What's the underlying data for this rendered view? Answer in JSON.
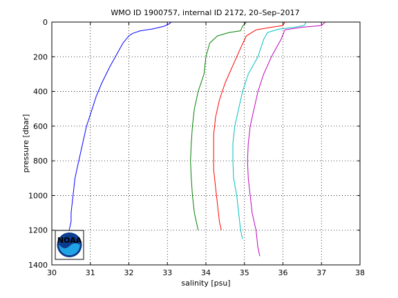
{
  "chart_data": {
    "type": "line",
    "title": "WMO ID 1900757, internal ID 2172, 20–Sep–2017",
    "xlabel": "salinity [psu]",
    "ylabel": "pressure [dbar]",
    "xlim": [
      30,
      38
    ],
    "ylim": [
      0,
      1400
    ],
    "y_reversed": true,
    "grid": true,
    "x_ticks": [
      "30",
      "31",
      "32",
      "33",
      "34",
      "35",
      "36",
      "37",
      "38"
    ],
    "y_ticks": [
      "0",
      "200",
      "400",
      "600",
      "800",
      "1000",
      "1200",
      "1400"
    ],
    "series": [
      {
        "color": "#0000ff",
        "points": [
          [
            33.1,
            0
          ],
          [
            33.05,
            10
          ],
          [
            32.9,
            25
          ],
          [
            32.6,
            40
          ],
          [
            32.3,
            50
          ],
          [
            32.1,
            65
          ],
          [
            32.0,
            80
          ],
          [
            31.85,
            120
          ],
          [
            31.7,
            180
          ],
          [
            31.5,
            260
          ],
          [
            31.3,
            350
          ],
          [
            31.15,
            430
          ],
          [
            31.05,
            500
          ],
          [
            30.9,
            600
          ],
          [
            30.8,
            700
          ],
          [
            30.7,
            800
          ],
          [
            30.6,
            900
          ],
          [
            30.55,
            1000
          ],
          [
            30.5,
            1100
          ],
          [
            30.5,
            1150
          ],
          [
            30.45,
            1200
          ]
        ]
      },
      {
        "color": "#008000",
        "points": [
          [
            35.05,
            0
          ],
          [
            34.95,
            25
          ],
          [
            34.9,
            50
          ],
          [
            34.6,
            60
          ],
          [
            34.3,
            80
          ],
          [
            34.1,
            120
          ],
          [
            34.0,
            200
          ],
          [
            33.95,
            300
          ],
          [
            33.8,
            400
          ],
          [
            33.7,
            500
          ],
          [
            33.65,
            600
          ],
          [
            33.62,
            700
          ],
          [
            33.6,
            800
          ],
          [
            33.62,
            900
          ],
          [
            33.65,
            1000
          ],
          [
            33.7,
            1100
          ],
          [
            33.8,
            1200
          ]
        ]
      },
      {
        "color": "#ff0000",
        "points": [
          [
            36.05,
            0
          ],
          [
            36.0,
            20
          ],
          [
            35.7,
            30
          ],
          [
            35.3,
            45
          ],
          [
            35.05,
            80
          ],
          [
            34.9,
            150
          ],
          [
            34.7,
            250
          ],
          [
            34.5,
            350
          ],
          [
            34.35,
            450
          ],
          [
            34.25,
            550
          ],
          [
            34.2,
            650
          ],
          [
            34.2,
            750
          ],
          [
            34.2,
            850
          ],
          [
            34.25,
            950
          ],
          [
            34.3,
            1050
          ],
          [
            34.35,
            1150
          ],
          [
            34.4,
            1200
          ]
        ]
      },
      {
        "color": "#00bfbf",
        "points": [
          [
            36.6,
            0
          ],
          [
            36.55,
            20
          ],
          [
            36.3,
            30
          ],
          [
            35.9,
            40
          ],
          [
            35.6,
            60
          ],
          [
            35.5,
            100
          ],
          [
            35.35,
            200
          ],
          [
            35.1,
            300
          ],
          [
            34.95,
            400
          ],
          [
            34.85,
            500
          ],
          [
            34.75,
            600
          ],
          [
            34.7,
            700
          ],
          [
            34.7,
            800
          ],
          [
            34.72,
            900
          ],
          [
            34.8,
            1000
          ],
          [
            34.85,
            1100
          ],
          [
            34.9,
            1200
          ],
          [
            34.95,
            1250
          ]
        ]
      },
      {
        "color": "#bf00bf",
        "points": [
          [
            37.1,
            0
          ],
          [
            37.0,
            20
          ],
          [
            36.5,
            30
          ],
          [
            36.05,
            45
          ],
          [
            35.95,
            100
          ],
          [
            35.7,
            200
          ],
          [
            35.5,
            300
          ],
          [
            35.35,
            400
          ],
          [
            35.25,
            500
          ],
          [
            35.15,
            600
          ],
          [
            35.1,
            700
          ],
          [
            35.08,
            800
          ],
          [
            35.1,
            900
          ],
          [
            35.15,
            1000
          ],
          [
            35.2,
            1100
          ],
          [
            35.3,
            1200
          ],
          [
            35.35,
            1300
          ],
          [
            35.4,
            1350
          ]
        ]
      }
    ],
    "logo": {
      "text": "NOAA",
      "colors": {
        "outer": "#0a3b8c",
        "wave": "#1fa4e6",
        "white": "#ffffff"
      }
    }
  }
}
